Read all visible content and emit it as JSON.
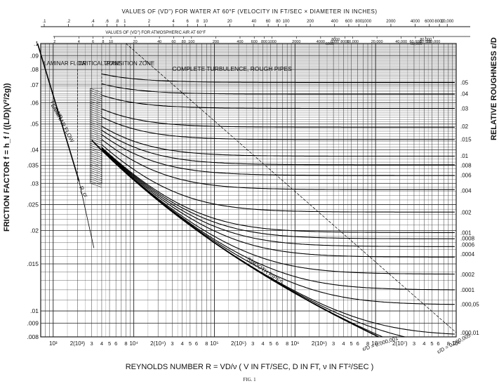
{
  "chart_data": {
    "type": "line",
    "xscale": "log",
    "yscale": "log",
    "xlim": [
      700,
      100000000
    ],
    "ylim": [
      0.008,
      0.1
    ],
    "grid": true,
    "title_top": "VALUES OF (VD\") FOR WATER AT 60°F (VELOCITY IN FT/SEC × DIAMETER IN INCHES)",
    "title_second": "VALUES OF (VD\") FOR ATMOSPHERIC AIR AT 60°F",
    "xlabel": "REYNOLDS NUMBER  R = VD/ν   ( V IN FT/SEC, D IN FT, ν IN FT²/SEC )",
    "ylabel": "FRICTION FACTOR f = h_f / ((L/D)(V²/2g))",
    "right_label": "RELATIVE ROUGHNESS ε/D",
    "figure_caption": "FIG. 1",
    "annotations": {
      "laminar_zone": "LAMINAR FLOW",
      "critical_zone": "CRITICAL ZONE",
      "transition_zone": "TRANSITION ZONE",
      "turbulence": "COMPLETE TURBULENCE, ROUGH PIPES",
      "laminar_flow": "LAMINAR FLOW",
      "laminar_eq": "f = 64/R",
      "rcrit": "R_cr",
      "smooth": "SMOOTH PIPES",
      "eps_1": "ε/D = 0.000,001",
      "eps_2": "ε/D = 0.000,005"
    },
    "y_tick_labels": [
      ".1",
      ".09",
      ".08",
      ".07",
      ".06",
      ".05",
      ".04",
      ".035",
      ".03",
      ".025",
      ".02",
      ".015",
      ".01",
      ".009",
      ".008"
    ],
    "y_ticks": [
      0.1,
      0.09,
      0.08,
      0.07,
      0.06,
      0.05,
      0.04,
      0.035,
      0.03,
      0.025,
      0.02,
      0.015,
      0.01,
      0.009,
      0.008
    ],
    "x_tick_labels": [
      "10³",
      "2(10³)",
      "3",
      "4",
      "5",
      "6",
      "8",
      "10⁴",
      "2(10⁴)",
      "3",
      "4",
      "5",
      "6",
      "8",
      "10⁵",
      "2(10⁵)",
      "3",
      "4",
      "5",
      "6",
      "8",
      "10⁶",
      "2(10⁶)",
      "3",
      "4",
      "5",
      "6",
      "8",
      "10⁷",
      "2(10⁷)",
      "3",
      "4",
      "5",
      "6",
      "8",
      "10⁸"
    ],
    "x_ticks": [
      1000,
      2000,
      3000,
      4000,
      5000,
      6000,
      8000,
      10000,
      20000,
      30000,
      40000,
      50000,
      60000,
      80000,
      100000,
      200000,
      300000,
      400000,
      500000,
      600000,
      800000,
      1000000,
      2000000,
      3000000,
      4000000,
      5000000,
      6000000,
      8000000,
      10000000,
      20000000,
      30000000,
      40000000,
      50000000,
      60000000,
      80000000,
      100000000
    ],
    "top_water_ticks": [
      ".1",
      ".2",
      ".4",
      ".6",
      ".8",
      "1",
      "2",
      "4",
      "6",
      "8",
      "10",
      "20",
      "40",
      "60",
      "80",
      "100",
      "200",
      "400",
      "600",
      "800",
      "1000",
      "2000",
      "4000",
      "6000",
      "8000",
      "10,000"
    ],
    "second_air_ticks": [
      "2",
      "4",
      "6",
      "8",
      "10",
      "20",
      "40",
      "60",
      "80",
      "100",
      "200",
      "400",
      "600",
      "800",
      "1000",
      "2000",
      "4000",
      "6000",
      "8000",
      "10,000",
      "20,000",
      "40,000",
      "60,000",
      "80,000",
      "100,000"
    ],
    "air_extra_ticks": [
      "8000",
      "6000",
      "80,000",
      "60,000"
    ],
    "right_tick_labels": [
      ".05",
      ".04",
      ".03",
      ".02",
      ".015",
      ".01",
      ".008",
      ".006",
      ".004",
      ".002",
      ".001",
      ".0008",
      ".0006",
      ".0004",
      ".0002",
      ".0001",
      ".000,05",
      ".000,01"
    ],
    "series": [
      {
        "name": ".05",
        "rough_f": 0.0716
      },
      {
        "name": ".04",
        "rough_f": 0.0649
      },
      {
        "name": ".03",
        "rough_f": 0.0571
      },
      {
        "name": ".02",
        "rough_f": 0.049
      },
      {
        "name": ".015",
        "rough_f": 0.0438
      },
      {
        "name": ".01",
        "rough_f": 0.038
      },
      {
        "name": ".008",
        "rough_f": 0.035
      },
      {
        "name": ".006",
        "rough_f": 0.0322
      },
      {
        "name": ".004",
        "rough_f": 0.0282
      },
      {
        "name": ".002",
        "rough_f": 0.0234
      },
      {
        "name": ".001",
        "rough_f": 0.0196
      },
      {
        "name": ".0008",
        "rough_f": 0.0187
      },
      {
        "name": ".0006",
        "rough_f": 0.0177
      },
      {
        "name": ".0004",
        "rough_f": 0.0163
      },
      {
        "name": ".0002",
        "rough_f": 0.0137
      },
      {
        "name": ".0001",
        "rough_f": 0.012
      },
      {
        "name": ".000,05",
        "rough_f": 0.0106
      },
      {
        "name": ".000,01",
        "rough_f": 0.0083
      }
    ]
  }
}
